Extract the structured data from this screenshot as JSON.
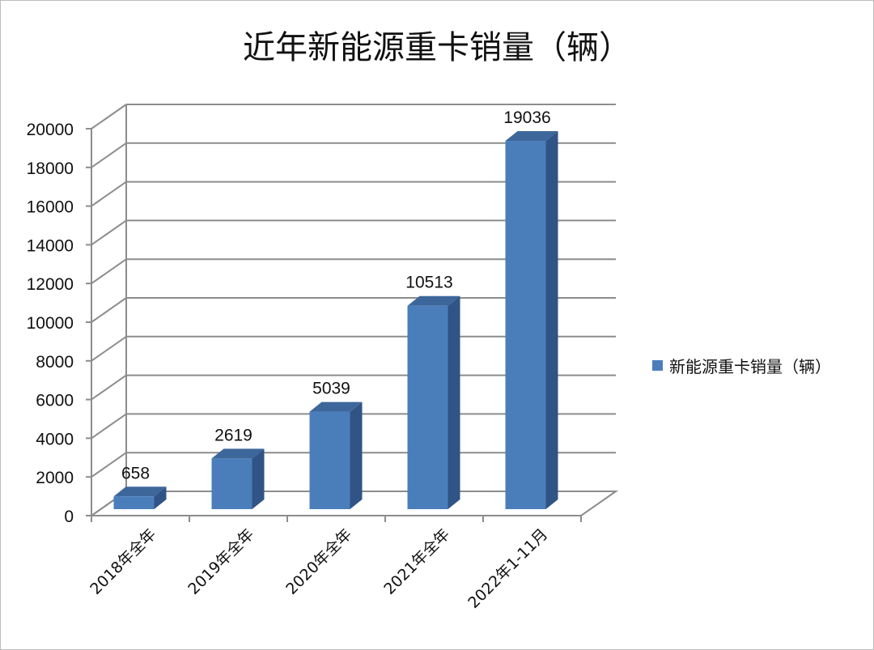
{
  "chart_data": {
    "type": "bar",
    "title": "近年新能源重卡销量（辆）",
    "categories": [
      "2018年全年",
      "2019年全年",
      "2020年全年",
      "2021年全年",
      "2022年1-11月"
    ],
    "series": [
      {
        "name": "新能源重卡销量（辆）",
        "values": [
          658,
          2619,
          5039,
          10513,
          19036
        ]
      }
    ],
    "data_labels": [
      "658",
      "2619",
      "5039",
      "10513",
      "19036"
    ],
    "ylim": [
      0,
      20000
    ],
    "yticks": [
      0,
      2000,
      4000,
      6000,
      8000,
      10000,
      12000,
      14000,
      16000,
      18000,
      20000
    ],
    "ytick_labels": [
      "0",
      "2000",
      "4000",
      "6000",
      "8000",
      "10000",
      "12000",
      "14000",
      "16000",
      "18000",
      "20000"
    ],
    "grid": true,
    "legend_position": "right",
    "three_d": true,
    "colors": {
      "bar_front": "#4a7ebb",
      "bar_side": "#2f5485",
      "bar_top": "#3d679b",
      "grid": "#8c8c8c"
    }
  }
}
